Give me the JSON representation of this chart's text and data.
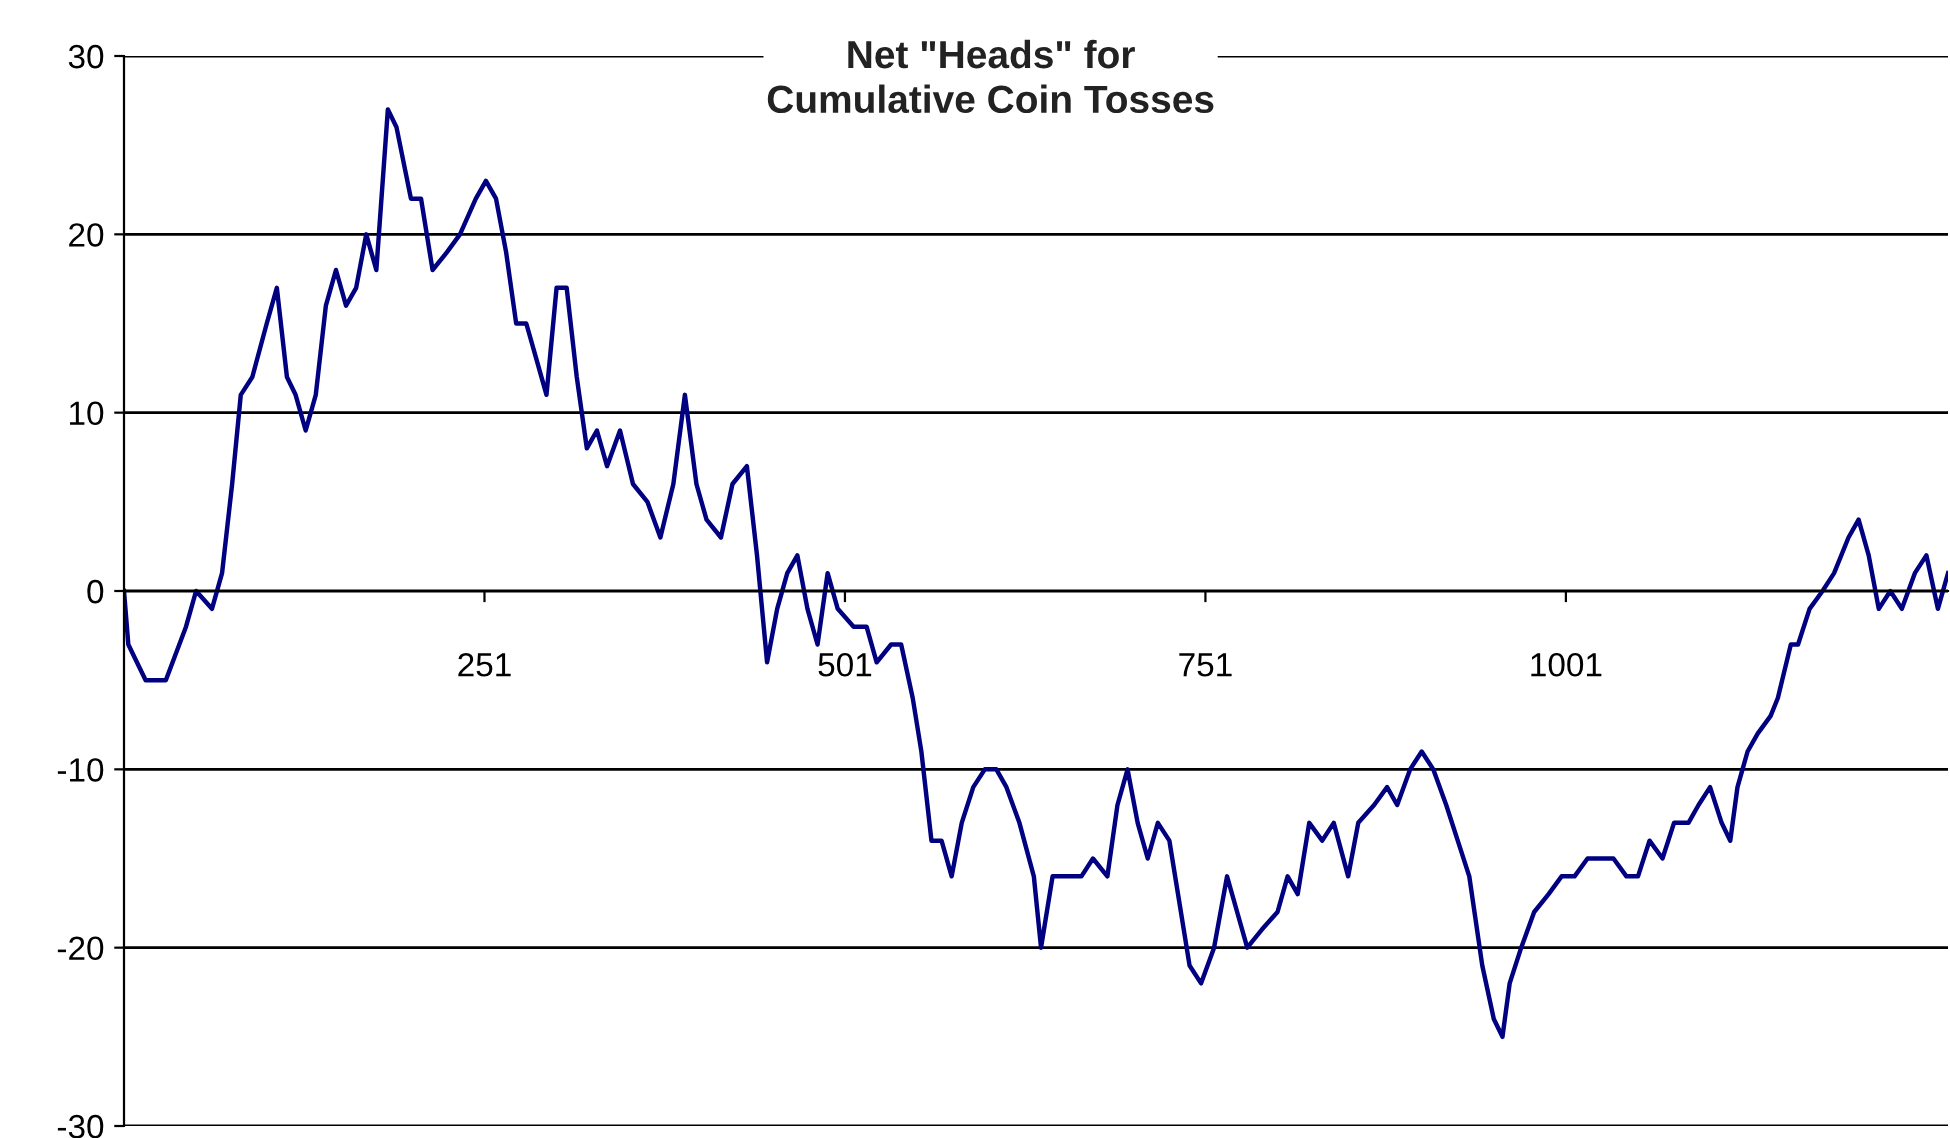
{
  "chart_data": {
    "type": "line",
    "title": "Net \"Heads\" for\nCumulative Coin Tosses",
    "x": [
      1,
      4,
      16,
      30,
      44,
      51,
      62,
      69,
      76,
      82,
      90,
      100,
      107,
      114,
      120,
      127,
      134,
      141,
      148,
      155,
      162,
      169,
      176,
      184,
      190,
      200,
      207,
      215,
      225,
      234,
      245,
      252,
      259,
      266,
      273,
      280,
      287,
      294,
      301,
      308,
      315,
      322,
      329,
      336,
      345,
      354,
      364,
      373,
      382,
      390,
      398,
      405,
      415,
      423,
      433,
      440,
      447,
      454,
      461,
      468,
      475,
      482,
      489,
      496,
      507,
      516,
      523,
      533,
      540,
      548,
      554,
      561,
      568,
      575,
      582,
      590,
      598,
      606,
      613,
      622,
      632,
      637,
      645,
      655,
      665,
      673,
      683,
      690,
      697,
      704,
      711,
      718,
      726,
      732,
      740,
      748,
      757,
      766,
      773,
      780,
      790,
      801,
      808,
      815,
      823,
      832,
      840,
      850,
      857,
      868,
      877,
      884,
      893,
      901,
      909,
      918,
      926,
      934,
      943,
      951,
      957,
      962,
      970,
      979,
      989,
      998,
      1007,
      1016,
      1023,
      1034,
      1043,
      1051,
      1059,
      1068,
      1076,
      1086,
      1093,
      1101,
      1109,
      1115,
      1120,
      1127,
      1134,
      1143,
      1148,
      1157,
      1162,
      1170,
      1179,
      1187,
      1197,
      1204,
      1211,
      1218,
      1226,
      1234,
      1243,
      1251,
      1259,
      1266
    ],
    "series": [
      {
        "color": "#000080",
        "values": [
          0,
          -3,
          -5,
          -5,
          -2,
          0,
          -1,
          1,
          6,
          11,
          12,
          15,
          17,
          12,
          11,
          9,
          11,
          16,
          18,
          16,
          17,
          20,
          18,
          27,
          26,
          22,
          22,
          18,
          19,
          20,
          22,
          23,
          22,
          19,
          15,
          15,
          13,
          11,
          17,
          17,
          12,
          8,
          9,
          7,
          9,
          6,
          5,
          3,
          6,
          11,
          6,
          4,
          3,
          6,
          7,
          2,
          -4,
          -1,
          1,
          2,
          -1,
          -3,
          1,
          -1,
          -2,
          -2,
          -4,
          -3,
          -3,
          -6,
          -9,
          -14,
          -14,
          -16,
          -13,
          -11,
          -10,
          -10,
          -11,
          -13,
          -16,
          -20,
          -16,
          -16,
          -16,
          -15,
          -16,
          -12,
          -10,
          -13,
          -15,
          -13,
          -14,
          -17,
          -21,
          -22,
          -20,
          -16,
          -18,
          -20,
          -19,
          -18,
          -16,
          -17,
          -13,
          -14,
          -13,
          -16,
          -13,
          -12,
          -11,
          -12,
          -10,
          -9,
          -10,
          -12,
          -14,
          -16,
          -21,
          -24,
          -25,
          -22,
          -20,
          -18,
          -17,
          -16,
          -16,
          -15,
          -15,
          -15,
          -16,
          -16,
          -14,
          -15,
          -13,
          -13,
          -12,
          -11,
          -13,
          -14,
          -11,
          -9,
          -8,
          -7,
          -6,
          -3,
          -3,
          -1,
          0,
          1,
          3,
          4,
          2,
          -1,
          0,
          -1,
          1,
          2,
          -1,
          1
        ]
      }
    ],
    "xlim": [
      1,
      1266
    ],
    "xticks": [
      251,
      501,
      751,
      1001
    ],
    "ylim": [
      -30,
      30
    ],
    "yticks": [
      -30,
      -20,
      -10,
      0,
      10,
      20,
      30
    ],
    "grid": "y",
    "legend": false,
    "marker": "none",
    "line_style": "solid"
  }
}
